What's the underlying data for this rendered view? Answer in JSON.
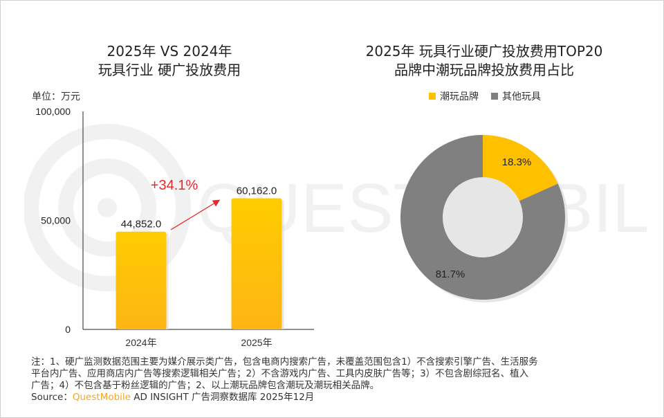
{
  "watermark_text": "QUESTMOBILE",
  "chart_data": [
    {
      "type": "bar",
      "title": "2025年 VS 2024年 玩具行业 硬广投放费用",
      "title_lines": [
        "2025年 VS 2024年",
        "玩具行业 硬广投放费用"
      ],
      "unit_label": "单位：万元",
      "categories": [
        "2024年",
        "2025年"
      ],
      "values": [
        44852.0,
        60162.0
      ],
      "value_labels": [
        "44,852.0",
        "60,162.0"
      ],
      "ylim": [
        0,
        100000
      ],
      "yticks": [
        0,
        50000,
        100000
      ],
      "ytick_labels": [
        "0",
        "50,000",
        "100,000"
      ],
      "annotation": "+34.1%",
      "colors": {
        "bar": "#FFC000",
        "annotation": "#E8262B",
        "axis": "#222222"
      }
    },
    {
      "type": "pie",
      "donut": true,
      "title": "2025年 玩具行业硬广投放费用TOP20品牌中潮玩品牌投放费用占比",
      "title_lines": [
        "2025年 玩具行业硬广投放费用TOP20",
        "品牌中潮玩品牌投放费用占比"
      ],
      "legend_position": "top",
      "slices": [
        {
          "label": "潮玩品牌",
          "value": 18.3,
          "value_label": "18.3%",
          "color": "#FFC000"
        },
        {
          "label": "其他玩具",
          "value": 81.7,
          "value_label": "81.7%",
          "color": "#808080"
        }
      ]
    }
  ],
  "notes": {
    "lines": [
      "注：1、硬广监测数据范围主要为媒介展示类广告，包含电商内搜索广告，未覆盖范围包含1）不含搜索引擎广告、生活服务",
      "平台内广告、应用商店内广告等搜索逻辑相关广告；2）不含游戏内广告、工具内皮肤广告等；3）不包含剧综冠名、植入",
      "广告；4）不包含基于粉丝逻辑的广告；2、以上潮玩品牌包含潮玩及潮玩相关品牌。"
    ],
    "source_prefix": "Source：",
    "source_brand": "QuestMobile",
    "source_rest": " AD INSIGHT 广告洞察数据库 2025年12月"
  }
}
